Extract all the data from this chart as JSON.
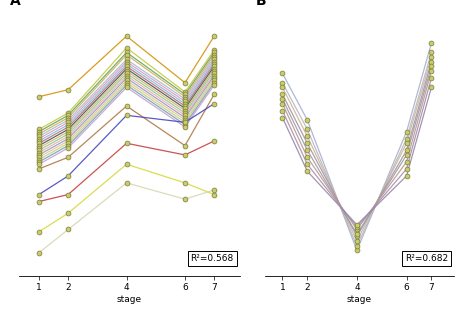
{
  "panel_A_label": "A",
  "panel_B_label": "B",
  "r2_A": "R²=0.568",
  "r2_B": "R²=0.682",
  "stages_A": [
    1,
    2,
    4,
    6,
    7
  ],
  "stages_B": [
    1,
    2,
    4,
    6,
    7
  ],
  "xlabel_A": "stage",
  "xlabel_B": "stage",
  "marker_color": "#c8cc6a",
  "marker_edge_color": "#7a7a3a",
  "marker_size": 3.5,
  "marker_edge_width": 0.5,
  "line_width": 0.9,
  "background_color": "#ffffff",
  "lines_A": [
    {
      "color": "#d4920a",
      "data": [
        0.72,
        0.75,
        0.98,
        0.78,
        0.98
      ]
    },
    {
      "color": "#c8c840",
      "data": [
        0.58,
        0.65,
        0.93,
        0.74,
        0.92
      ]
    },
    {
      "color": "#60a860",
      "data": [
        0.57,
        0.64,
        0.91,
        0.73,
        0.91
      ]
    },
    {
      "color": "#d0b060",
      "data": [
        0.56,
        0.63,
        0.9,
        0.72,
        0.9
      ]
    },
    {
      "color": "#b0b8d0",
      "data": [
        0.55,
        0.62,
        0.88,
        0.71,
        0.89
      ]
    },
    {
      "color": "#d8a0c0",
      "data": [
        0.54,
        0.61,
        0.87,
        0.7,
        0.88
      ]
    },
    {
      "color": "#80c0d8",
      "data": [
        0.53,
        0.6,
        0.86,
        0.69,
        0.87
      ]
    },
    {
      "color": "#b87080",
      "data": [
        0.52,
        0.59,
        0.85,
        0.68,
        0.86
      ]
    },
    {
      "color": "#505050",
      "data": [
        0.51,
        0.58,
        0.84,
        0.67,
        0.85
      ]
    },
    {
      "color": "#c8b870",
      "data": [
        0.5,
        0.57,
        0.83,
        0.66,
        0.84
      ]
    },
    {
      "color": "#90c890",
      "data": [
        0.49,
        0.56,
        0.82,
        0.65,
        0.83
      ]
    },
    {
      "color": "#e8b0b0",
      "data": [
        0.48,
        0.55,
        0.81,
        0.64,
        0.82
      ]
    },
    {
      "color": "#9898c8",
      "data": [
        0.47,
        0.54,
        0.8,
        0.63,
        0.81
      ]
    },
    {
      "color": "#e0c888",
      "data": [
        0.46,
        0.53,
        0.79,
        0.62,
        0.8
      ]
    },
    {
      "color": "#c0d088",
      "data": [
        0.45,
        0.52,
        0.78,
        0.61,
        0.79
      ]
    },
    {
      "color": "#78a0b8",
      "data": [
        0.44,
        0.51,
        0.77,
        0.6,
        0.78
      ]
    },
    {
      "color": "#c8a0d0",
      "data": [
        0.43,
        0.5,
        0.76,
        0.59,
        0.77
      ]
    },
    {
      "color": "#b07848",
      "data": [
        0.41,
        0.46,
        0.68,
        0.51,
        0.73
      ]
    },
    {
      "color": "#4848c0",
      "data": [
        0.3,
        0.38,
        0.64,
        0.61,
        0.69
      ]
    },
    {
      "color": "#c84040",
      "data": [
        0.27,
        0.3,
        0.52,
        0.47,
        0.53
      ]
    },
    {
      "color": "#d8d840",
      "data": [
        0.14,
        0.22,
        0.43,
        0.35,
        0.3
      ]
    },
    {
      "color": "#d8d8b0",
      "data": [
        0.05,
        0.15,
        0.35,
        0.28,
        0.32
      ]
    }
  ],
  "lines_B": [
    {
      "color": "#a8b0d0",
      "data": [
        0.82,
        0.62,
        0.06,
        0.57,
        0.95
      ]
    },
    {
      "color": "#b8b8c0",
      "data": [
        0.78,
        0.58,
        0.08,
        0.54,
        0.91
      ]
    },
    {
      "color": "#c8b898",
      "data": [
        0.76,
        0.55,
        0.1,
        0.52,
        0.89
      ]
    },
    {
      "color": "#b090a0",
      "data": [
        0.73,
        0.52,
        0.12,
        0.49,
        0.87
      ]
    },
    {
      "color": "#90a0b0",
      "data": [
        0.71,
        0.49,
        0.13,
        0.47,
        0.85
      ]
    },
    {
      "color": "#c09888",
      "data": [
        0.69,
        0.46,
        0.15,
        0.44,
        0.83
      ]
    },
    {
      "color": "#a890b0",
      "data": [
        0.66,
        0.43,
        0.16,
        0.41,
        0.8
      ]
    },
    {
      "color": "#9888a8",
      "data": [
        0.63,
        0.4,
        0.17,
        0.38,
        0.76
      ]
    }
  ],
  "ylim_A": [
    -0.05,
    1.08
  ],
  "ylim_B": [
    -0.05,
    1.08
  ],
  "xlim": [
    0.3,
    7.9
  ]
}
